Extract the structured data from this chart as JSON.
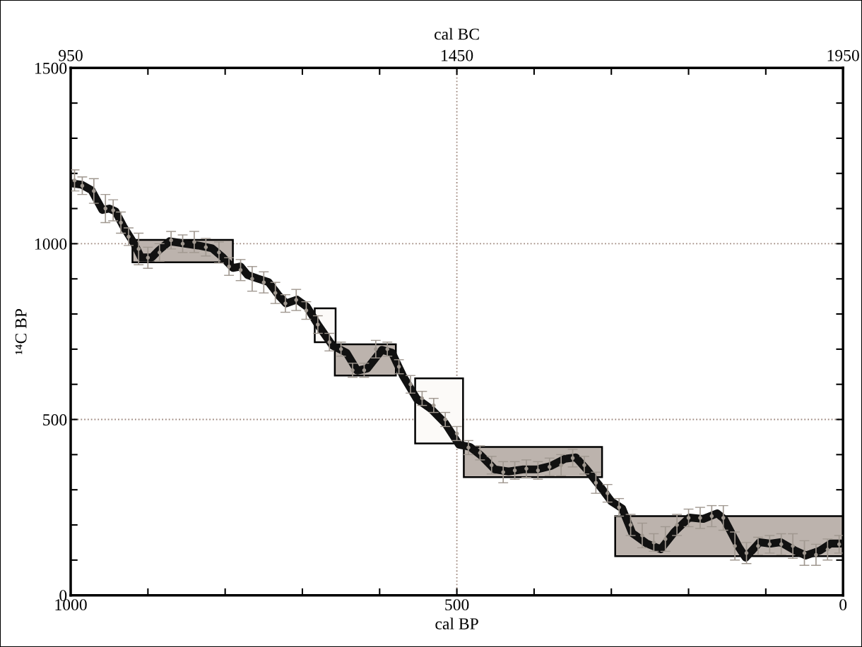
{
  "chart_data": {
    "type": "line",
    "xlabel": "cal BP",
    "ylabel": "¹⁴C BP",
    "x2label": "cal BC",
    "xlim": [
      1000,
      0
    ],
    "ylim": [
      0,
      1500
    ],
    "xticks": [
      1000,
      {
        "value": 900,
        "label": null
      },
      {
        "value": 800,
        "label": null
      },
      {
        "value": 700,
        "label": null
      },
      {
        "value": 600,
        "label": null
      },
      500,
      {
        "value": 400,
        "label": null
      },
      {
        "value": 300,
        "label": null
      },
      {
        "value": 200,
        "label": null
      },
      {
        "value": 100,
        "label": null
      },
      0
    ],
    "yticks": [
      0,
      {
        "value": 100,
        "label": null
      },
      {
        "value": 200,
        "label": null
      },
      {
        "value": 300,
        "label": null
      },
      {
        "value": 400,
        "label": null
      },
      500,
      {
        "value": 600,
        "label": null
      },
      {
        "value": 700,
        "label": null
      },
      {
        "value": 800,
        "label": null
      },
      {
        "value": 900,
        "label": null
      },
      1000,
      {
        "value": 1100,
        "label": null
      },
      {
        "value": 1200,
        "label": null
      },
      {
        "value": 1300,
        "label": null
      },
      {
        "value": 1400,
        "label": null
      },
      1500
    ],
    "x2lim": [
      950,
      1950
    ],
    "x2ticks": [
      950,
      {
        "value": 1050,
        "label": null
      },
      {
        "value": 1150,
        "label": null
      },
      {
        "value": 1250,
        "label": null
      },
      {
        "value": 1350,
        "label": null
      },
      1450,
      {
        "value": 1550,
        "label": null
      },
      {
        "value": 1650,
        "label": null
      },
      {
        "value": 1750,
        "label": null
      },
      {
        "value": 1850,
        "label": null
      },
      1950
    ],
    "ref_lines": [
      {
        "axis": "y",
        "value": 1000,
        "color": "#a08a80",
        "line_style": "dotted"
      },
      {
        "axis": "y",
        "value": 500,
        "color": "#a08a80",
        "line_style": "dotted"
      },
      {
        "axis": "x",
        "value": 500,
        "color": "#a08a80",
        "line_style": "dotted"
      }
    ],
    "grid": false,
    "legend": false,
    "series": [
      {
        "type": "area",
        "color": "#bcb3ad",
        "x": [
          920,
          790,
          790,
          920,
          920
        ],
        "values": [
          947,
          947,
          1011,
          1011,
          947
        ]
      },
      {
        "type": "area",
        "color": "#fcfaf8",
        "x": [
          684,
          657,
          657,
          684,
          684
        ],
        "values": [
          720,
          720,
          816,
          816,
          720
        ]
      },
      {
        "type": "area",
        "color": "#bcb3ad",
        "x": [
          658,
          579,
          579,
          658,
          658
        ],
        "values": [
          625,
          625,
          714,
          714,
          625
        ]
      },
      {
        "type": "area",
        "color": "#fcfaf8",
        "x": [
          554,
          492,
          492,
          554,
          554
        ],
        "values": [
          432,
          432,
          617,
          617,
          432
        ]
      },
      {
        "type": "area",
        "color": "#bcb3ad",
        "x": [
          491,
          312,
          312,
          491,
          491
        ],
        "values": [
          336,
          336,
          422,
          422,
          336
        ]
      },
      {
        "type": "area",
        "color": "#bcb3ad",
        "x": [
          295,
          0,
          0,
          295,
          295
        ],
        "values": [
          111,
          111,
          225,
          225,
          111
        ]
      },
      {
        "type": "scatter",
        "marker": "circle",
        "color": "#a09890",
        "x": [
          995,
          985,
          970,
          955,
          945,
          935,
          925,
          912,
          900,
          885,
          870,
          855,
          840,
          825,
          808,
          795,
          780,
          765,
          750,
          735,
          722,
          708,
          695,
          680,
          665,
          650,
          635,
          620,
          605,
          590,
          575,
          560,
          545,
          530,
          515,
          500,
          485,
          470,
          455,
          440,
          425,
          410,
          395,
          380,
          365,
          350,
          335,
          320,
          305,
          290,
          275,
          260,
          245,
          230,
          215,
          200,
          185,
          170,
          155,
          140,
          125,
          110,
          95,
          80,
          65,
          50,
          35,
          20,
          5
        ],
        "values": [
          1180,
          1165,
          1150,
          1100,
          1095,
          1060,
          1020,
          985,
          960,
          975,
          1010,
          1000,
          1005,
          990,
          975,
          935,
          925,
          900,
          890,
          860,
          830,
          840,
          810,
          770,
          720,
          700,
          640,
          640,
          700,
          700,
          650,
          600,
          560,
          540,
          500,
          460,
          420,
          405,
          370,
          350,
          355,
          360,
          355,
          365,
          370,
          390,
          370,
          320,
          290,
          250,
          200,
          170,
          150,
          160,
          200,
          220,
          220,
          225,
          220,
          140,
          120,
          140,
          145,
          145,
          140,
          120,
          115,
          130,
          145
        ],
        "errors": [
          30,
          25,
          35,
          40,
          30,
          30,
          25,
          45,
          30,
          25,
          25,
          25,
          30,
          25,
          30,
          25,
          30,
          35,
          30,
          30,
          25,
          30,
          25,
          25,
          25,
          20,
          20,
          20,
          25,
          20,
          20,
          25,
          20,
          20,
          20,
          20,
          20,
          20,
          25,
          30,
          25,
          25,
          25,
          25,
          30,
          25,
          25,
          30,
          25,
          25,
          30,
          35,
          25,
          35,
          30,
          25,
          30,
          30,
          35,
          40,
          30,
          25,
          25,
          30,
          35,
          35,
          30,
          30,
          25
        ]
      },
      {
        "color": "#111111",
        "x": [
          1000,
          986,
          973,
          959,
          950,
          942,
          931,
          918,
          909,
          895,
          886,
          872,
          854,
          835,
          817,
          803,
          790,
          780,
          771,
          758,
          744,
          730,
          721,
          707,
          694,
          680,
          661,
          643,
          629,
          616,
          597,
          584,
          570,
          552,
          533,
          515,
          497,
          483,
          469,
          451,
          433,
          414,
          396,
          378,
          360,
          346,
          332,
          314,
          300,
          286,
          273,
          254,
          236,
          218,
          199,
          181,
          163,
          154,
          135,
          126,
          108,
          94,
          81,
          62,
          48,
          30,
          16,
          0
        ],
        "values": [
          1172,
          1168,
          1152,
          1096,
          1100,
          1092,
          1046,
          1001,
          961,
          961,
          981,
          1007,
          1001,
          995,
          987,
          961,
          931,
          935,
          911,
          901,
          891,
          851,
          830,
          841,
          820,
          770,
          710,
          690,
          639,
          645,
          698,
          690,
          625,
          559,
          529,
          489,
          428,
          422,
          398,
          358,
          352,
          358,
          358,
          368,
          388,
          392,
          358,
          308,
          267,
          247,
          177,
          147,
          131,
          181,
          221,
          217,
          233,
          217,
          137,
          107,
          151,
          147,
          151,
          127,
          113,
          127,
          147,
          147
        ]
      }
    ]
  }
}
